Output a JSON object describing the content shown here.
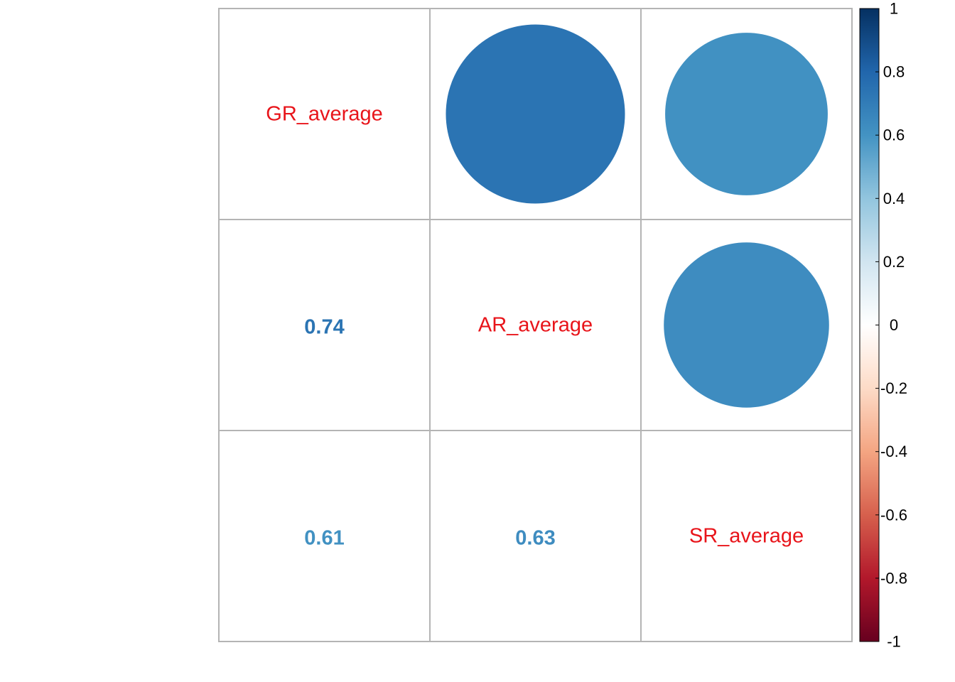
{
  "chart_data": {
    "type": "heatmap",
    "variables": [
      "GR_average",
      "AR_average",
      "SR_average"
    ],
    "matrix": [
      [
        1,
        0.74,
        0.61
      ],
      [
        0.74,
        1,
        0.63
      ],
      [
        0.61,
        0.63,
        1
      ]
    ],
    "coefficient_labels": [
      {
        "row": 1,
        "col": 0,
        "text": "0.74",
        "value": 0.74
      },
      {
        "row": 2,
        "col": 0,
        "text": "0.61",
        "value": 0.61
      },
      {
        "row": 2,
        "col": 1,
        "text": "0.63",
        "value": 0.63
      }
    ],
    "upper_method": "circle",
    "lower_method": "number",
    "diagonal": "variable names",
    "colorbar": {
      "range": [
        -1,
        1
      ],
      "ticks": [
        "1",
        "0.8",
        "0.6",
        "0.4",
        "0.2",
        "0",
        "-0.2",
        "-0.4",
        "-0.6",
        "-0.8",
        "-1"
      ],
      "tick_values": [
        1,
        0.8,
        0.6,
        0.4,
        0.2,
        0,
        -0.2,
        -0.4,
        -0.6,
        -0.8,
        -1
      ],
      "placement": "right",
      "colors": [
        "#67001f",
        "#b2182b",
        "#d6604d",
        "#f4a582",
        "#fddbc7",
        "#ffffff",
        "#d1e5f0",
        "#92c5de",
        "#4393c3",
        "#2166ac",
        "#053061"
      ]
    },
    "grid": true,
    "grid_color": "#b4b4b4",
    "label_color": "#e8141a",
    "title": "",
    "xlabel": "",
    "ylabel": ""
  }
}
